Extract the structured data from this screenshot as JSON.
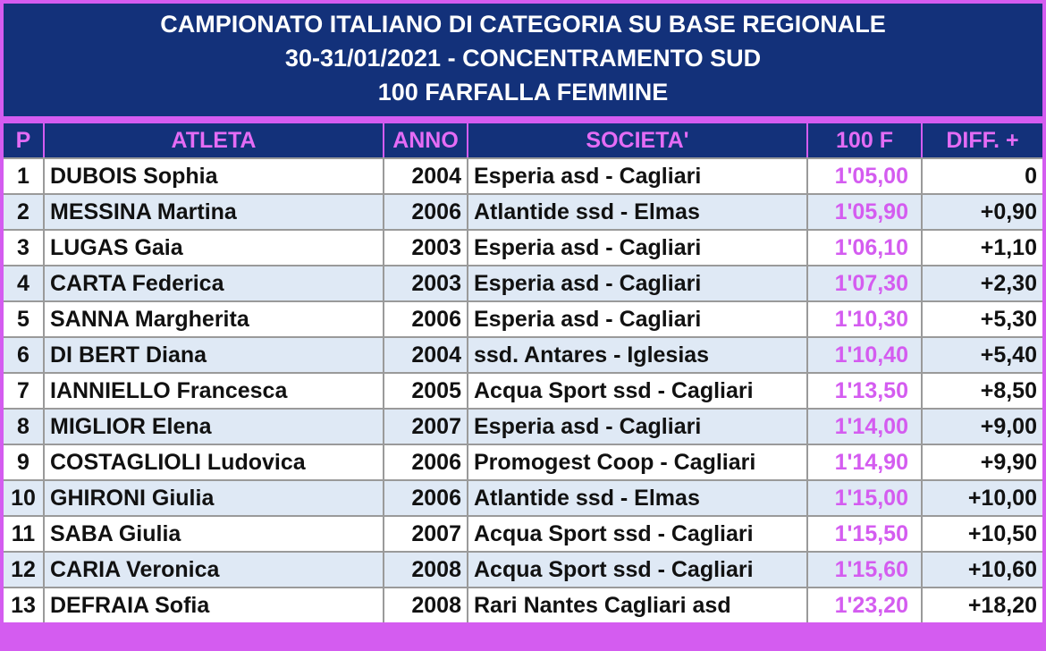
{
  "header": {
    "line1": "CAMPIONATO ITALIANO DI CATEGORIA SU BASE REGIONALE",
    "line2": "30-31/01/2021 - CONCENTRAMENTO SUD",
    "line3": "100 FARFALLA FEMMINE"
  },
  "columns": {
    "pos": "P",
    "athlete": "ATLETA",
    "year": "ANNO",
    "club": "SOCIETA'",
    "time": "100 F",
    "diff": "DIFF. +"
  },
  "rows": [
    {
      "pos": "1",
      "athlete": "DUBOIS Sophia",
      "year": "2004",
      "club": "Esperia asd - Cagliari",
      "time": "1'05,00",
      "diff": "0"
    },
    {
      "pos": "2",
      "athlete": "MESSINA Martina",
      "year": "2006",
      "club": "Atlantide ssd - Elmas",
      "time": "1'05,90",
      "diff": "+0,90"
    },
    {
      "pos": "3",
      "athlete": "LUGAS Gaia",
      "year": "2003",
      "club": "Esperia asd - Cagliari",
      "time": "1'06,10",
      "diff": "+1,10"
    },
    {
      "pos": "4",
      "athlete": "CARTA Federica",
      "year": "2003",
      "club": "Esperia asd - Cagliari",
      "time": "1'07,30",
      "diff": "+2,30"
    },
    {
      "pos": "5",
      "athlete": "SANNA Margherita",
      "year": "2006",
      "club": "Esperia asd - Cagliari",
      "time": "1'10,30",
      "diff": "+5,30"
    },
    {
      "pos": "6",
      "athlete": "DI BERT Diana",
      "year": "2004",
      "club": "ssd. Antares - Iglesias",
      "time": "1'10,40",
      "diff": "+5,40"
    },
    {
      "pos": "7",
      "athlete": "IANNIELLO Francesca",
      "year": "2005",
      "club": "Acqua Sport ssd - Cagliari",
      "time": "1'13,50",
      "diff": "+8,50"
    },
    {
      "pos": "8",
      "athlete": "MIGLIOR Elena",
      "year": "2007",
      "club": "Esperia asd - Cagliari",
      "time": "1'14,00",
      "diff": "+9,00"
    },
    {
      "pos": "9",
      "athlete": "COSTAGLIOLI Ludovica",
      "year": "2006",
      "club": "Promogest Coop - Cagliari",
      "time": "1'14,90",
      "diff": "+9,90"
    },
    {
      "pos": "10",
      "athlete": "GHIRONI Giulia",
      "year": "2006",
      "club": "Atlantide ssd - Elmas",
      "time": "1'15,00",
      "diff": "+10,00"
    },
    {
      "pos": "11",
      "athlete": "SABA Giulia",
      "year": "2007",
      "club": "Acqua Sport ssd - Cagliari",
      "time": "1'15,50",
      "diff": "+10,50"
    },
    {
      "pos": "12",
      "athlete": "CARIA Veronica",
      "year": "2008",
      "club": "Acqua Sport ssd - Cagliari",
      "time": "1'15,60",
      "diff": "+10,60"
    },
    {
      "pos": "13",
      "athlete": "DEFRAIA Sofia",
      "year": "2008",
      "club": "Rari Nantes Cagliari asd",
      "time": "1'23,20",
      "diff": "+18,20"
    }
  ]
}
